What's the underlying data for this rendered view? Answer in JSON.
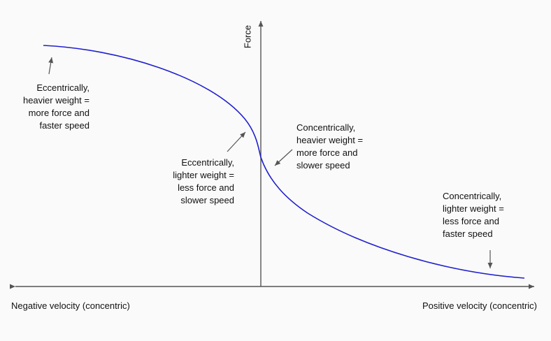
{
  "axes": {
    "y_label": "Force",
    "x_label_left": "Negative velocity (concentric)",
    "x_label_right": "Positive velocity (concentric)"
  },
  "annotations": {
    "ecc_heavy": [
      "Eccentrically,",
      "heavier weight =",
      "more force and",
      "faster speed"
    ],
    "ecc_light": [
      "Eccentrically,",
      "lighter weight =",
      "less force and",
      "slower speed"
    ],
    "con_heavy": [
      "Concentrically,",
      "heavier weight =",
      "more force and",
      "slower speed"
    ],
    "con_light": [
      "Concentrically,",
      "lighter weight =",
      "less force and",
      "faster speed"
    ]
  },
  "colors": {
    "curve": "#2020d0",
    "axis": "#555555",
    "arrow": "#555555",
    "background": "#fafafa"
  }
}
